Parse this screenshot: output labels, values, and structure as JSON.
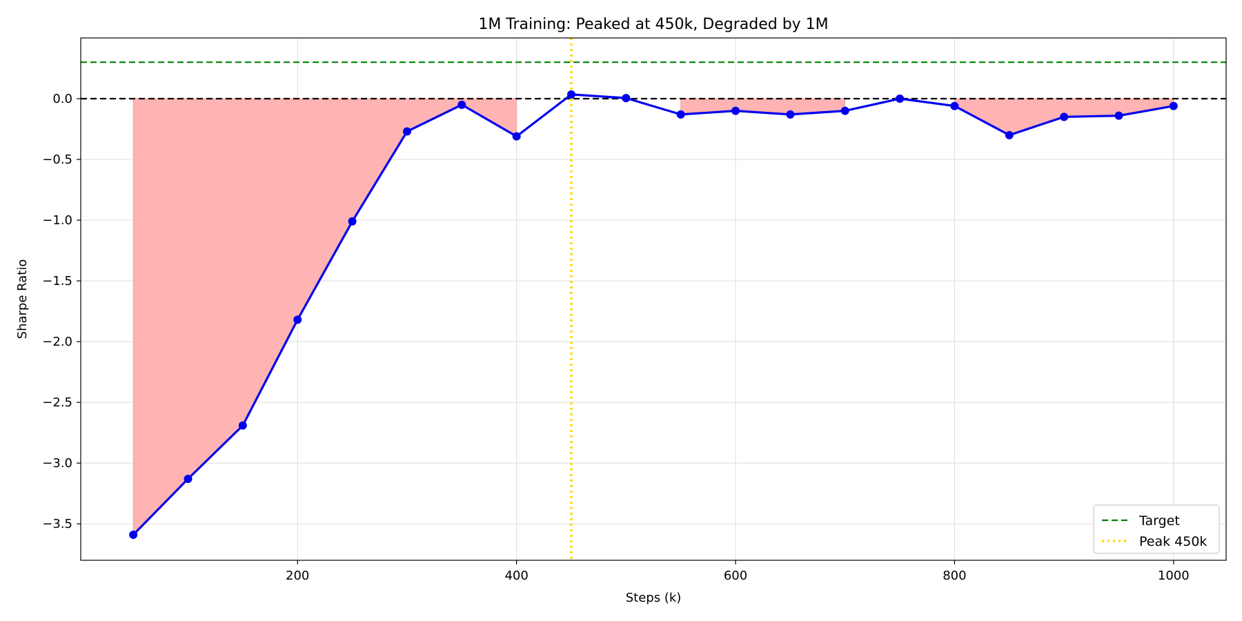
{
  "chart_data": {
    "type": "line",
    "title": "1M Training: Peaked at 450k, Degraded by 1M",
    "xlabel": "Steps (k)",
    "ylabel": "Sharpe Ratio",
    "xlim": [
      2,
      1048
    ],
    "ylim": [
      -3.8,
      0.5
    ],
    "xticks": [
      200,
      400,
      600,
      800,
      1000
    ],
    "yticks": [
      0.0,
      -0.5,
      -1.0,
      -1.5,
      -2.0,
      -2.5,
      -3.0,
      -3.5
    ],
    "ytick_labels": [
      "0.0",
      "−0.5",
      "−1.0",
      "−1.5",
      "−2.0",
      "−2.5",
      "−3.0",
      "−3.5"
    ],
    "grid": true,
    "series": [
      {
        "color": "#0000ee",
        "x": [
          50,
          100,
          150,
          200,
          250,
          300,
          350,
          400,
          450,
          500,
          550,
          600,
          650,
          700,
          750,
          800,
          850,
          900,
          950,
          1000
        ],
        "y": [
          -3.59,
          -3.13,
          -2.69,
          -1.82,
          -1.01,
          -0.27,
          -0.05,
          -0.31,
          0.035,
          0.005,
          -0.13,
          -0.1,
          -0.13,
          -0.1,
          0.0,
          -0.06,
          -0.3,
          -0.15,
          -0.14,
          -0.06
        ]
      }
    ],
    "fill_negative_color": "#ffb3b3",
    "reference_lines": [
      {
        "name": "Target",
        "orientation": "horizontal",
        "value": 0.3,
        "color": "#008000",
        "style": "dashed"
      },
      {
        "name": "Zero",
        "orientation": "horizontal",
        "value": 0.0,
        "color": "#000000",
        "style": "dashed"
      },
      {
        "name": "Peak 450k",
        "orientation": "vertical",
        "value": 450,
        "color": "#ffd700",
        "style": "dotted"
      }
    ],
    "legend": {
      "placement": "lower-right",
      "entries": [
        {
          "label": "Target",
          "color": "#008000",
          "style": "dashed"
        },
        {
          "label": "Peak 450k",
          "color": "#ffd700",
          "style": "dotted"
        }
      ]
    }
  }
}
